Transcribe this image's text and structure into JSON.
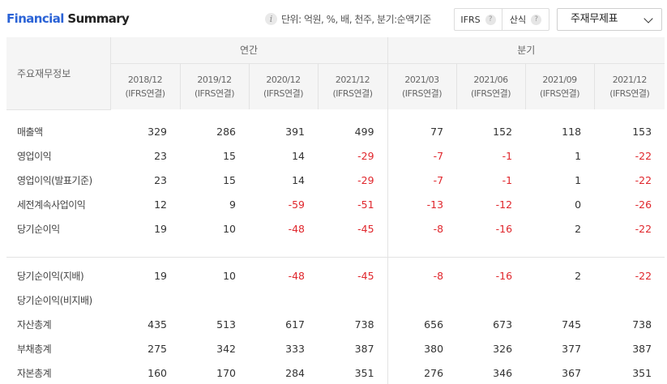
{
  "header": {
    "title_part1": "Financial",
    "title_part2": " Summary",
    "info_icon": "info-icon",
    "unit_note": "단위: 억원, %, 배, 천주, 분기:순액기준",
    "toggles": [
      {
        "label": "IFRS",
        "help_icon": "question-icon",
        "help_glyph": "?"
      },
      {
        "label": "산식",
        "help_icon": "question-icon",
        "help_glyph": "?"
      }
    ],
    "select_value": "주재무제표",
    "select_icon": "chevron-down-icon"
  },
  "table": {
    "row_header_label": "주요재무정보",
    "groups": [
      {
        "label": "연간"
      },
      {
        "label": "분기"
      }
    ],
    "periods": [
      {
        "date": "2018/12",
        "basis": "(IFRS연결)"
      },
      {
        "date": "2019/12",
        "basis": "(IFRS연결)"
      },
      {
        "date": "2020/12",
        "basis": "(IFRS연결)"
      },
      {
        "date": "2021/12",
        "basis": "(IFRS연결)"
      },
      {
        "date": "2021/03",
        "basis": "(IFRS연결)"
      },
      {
        "date": "2021/06",
        "basis": "(IFRS연결)"
      },
      {
        "date": "2021/09",
        "basis": "(IFRS연결)"
      },
      {
        "date": "2021/12",
        "basis": "(IFRS연결)"
      }
    ],
    "rows": [
      {
        "label": "매출액",
        "values": [
          "329",
          "286",
          "391",
          "499",
          "77",
          "152",
          "118",
          "153"
        ]
      },
      {
        "label": "영업이익",
        "values": [
          "23",
          "15",
          "14",
          "-29",
          "-7",
          "-1",
          "1",
          "-22"
        ]
      },
      {
        "label": "영업이익(발표기준)",
        "values": [
          "23",
          "15",
          "14",
          "-29",
          "-7",
          "-1",
          "1",
          "-22"
        ]
      },
      {
        "label": "세전계속사업이익",
        "values": [
          "12",
          "9",
          "-59",
          "-51",
          "-13",
          "-12",
          "0",
          "-26"
        ]
      },
      {
        "label": "당기순이익",
        "values": [
          "19",
          "10",
          "-48",
          "-45",
          "-8",
          "-16",
          "2",
          "-22"
        ]
      },
      {
        "label": "당기순이익(지배)",
        "values": [
          "19",
          "10",
          "-48",
          "-45",
          "-8",
          "-16",
          "2",
          "-22"
        ]
      },
      {
        "label": "당기순이익(비지배)",
        "values": [
          "",
          "",
          "",
          "",
          "",
          "",
          "",
          ""
        ]
      },
      {
        "label": "자산총계",
        "values": [
          "435",
          "513",
          "617",
          "738",
          "656",
          "673",
          "745",
          "738"
        ]
      },
      {
        "label": "부채총계",
        "values": [
          "275",
          "342",
          "333",
          "387",
          "380",
          "326",
          "377",
          "387"
        ]
      },
      {
        "label": "자본총계",
        "values": [
          "160",
          "170",
          "284",
          "351",
          "276",
          "346",
          "367",
          "351"
        ]
      }
    ],
    "negative_color": "#e0262c",
    "accent_color": "#2b63d6"
  }
}
